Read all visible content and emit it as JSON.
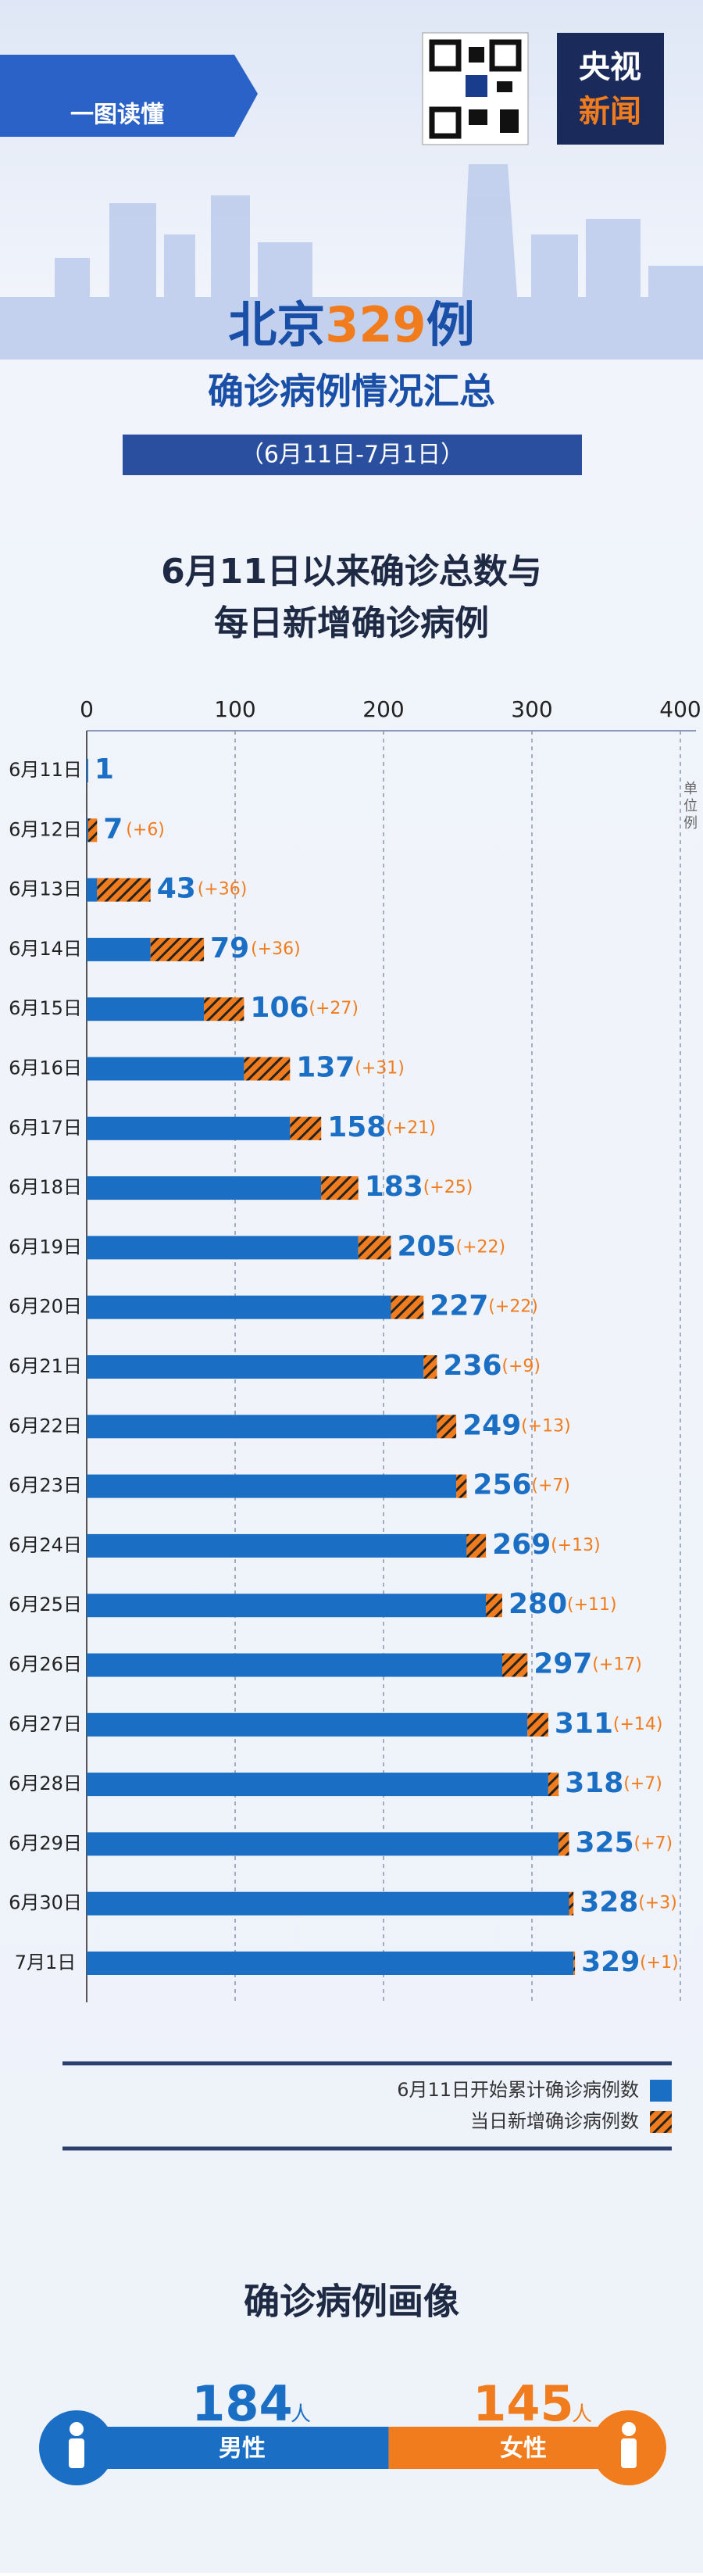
{
  "header": {
    "tag": "一图读懂",
    "logo_top": "央视",
    "logo_bottom": "新闻"
  },
  "title": {
    "prefix": "北京",
    "number": "329",
    "suffix": "例",
    "subtitle": "确诊病例情况汇总",
    "date_range": "（6月11日-7月1日）"
  },
  "chart_data": {
    "type": "bar",
    "orientation": "horizontal",
    "stacked": true,
    "title_lines": [
      "6月11日以来确诊总数与",
      "每日新增确诊病例"
    ],
    "unit_label": "单位例",
    "categories": [
      "6月11日",
      "6月12日",
      "6月13日",
      "6月14日",
      "6月15日",
      "6月16日",
      "6月17日",
      "6月18日",
      "6月19日",
      "6月20日",
      "6月21日",
      "6月22日",
      "6月23日",
      "6月24日",
      "6月25日",
      "6月26日",
      "6月27日",
      "6月28日",
      "6月29日",
      "6月30日",
      "7月1日"
    ],
    "series": [
      {
        "name": "6月11日开始累计确诊病例数",
        "color": "#1a6fc4",
        "values": [
          1,
          1,
          7,
          43,
          79,
          106,
          137,
          158,
          183,
          205,
          227,
          236,
          249,
          256,
          269,
          280,
          297,
          311,
          318,
          325,
          328
        ]
      },
      {
        "name": "当日新增确诊病例数",
        "color": "#f07c1e",
        "hatched": true,
        "values": [
          null,
          6,
          36,
          36,
          27,
          31,
          21,
          25,
          22,
          22,
          9,
          13,
          7,
          13,
          11,
          17,
          14,
          7,
          7,
          3,
          1
        ],
        "value_labels": [
          null,
          "(+6)",
          "(+36)",
          "(+36)",
          "(+27)",
          "(+31)",
          "(+21)",
          "(+25)",
          "(+22)",
          "(+22)",
          "(+9)",
          "(+13)",
          "(+7)",
          "(+13)",
          "(+11)",
          "(+17)",
          "(+14)",
          "(+7)",
          "(+7)",
          "(+3)",
          "(+1)"
        ]
      }
    ],
    "totals": [
      1,
      7,
      43,
      79,
      106,
      137,
      158,
      183,
      205,
      227,
      236,
      249,
      256,
      269,
      280,
      297,
      311,
      318,
      325,
      328,
      329
    ],
    "xlim": [
      0,
      400
    ],
    "xticks": [
      0,
      100,
      200,
      300,
      400
    ],
    "grid": true
  },
  "portrait": {
    "title": "确诊病例画像",
    "male": {
      "value": 184,
      "unit": "人",
      "label": "男性",
      "color": "#1a6fc4"
    },
    "female": {
      "value": 145,
      "unit": "人",
      "label": "女性",
      "color": "#f07c1e"
    }
  }
}
